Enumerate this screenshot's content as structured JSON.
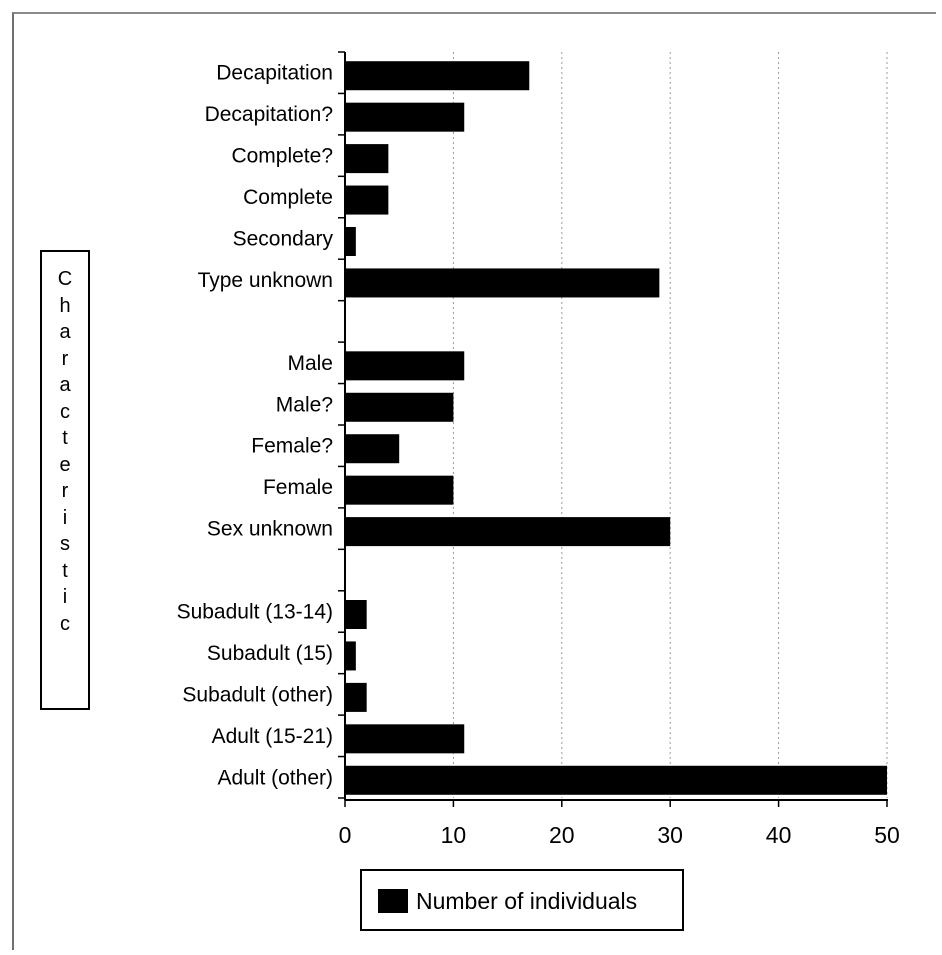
{
  "chart_data": {
    "type": "bar",
    "orientation": "horizontal",
    "ylabel": "Characteristic",
    "xlabel": "",
    "xlim": [
      0,
      50
    ],
    "xticks": [
      0,
      10,
      20,
      30,
      40,
      50
    ],
    "grid": "vertical dashed",
    "legend_position": "bottom",
    "groups": [
      {
        "categories": [
          "Decapitation",
          "Decapitation?",
          "Complete?",
          "Complete",
          "Secondary",
          "Type unknown"
        ],
        "values": [
          17,
          11,
          4,
          4,
          1,
          29
        ]
      },
      {
        "categories": [
          "Male",
          "Male?",
          "Female?",
          "Female",
          "Sex unknown"
        ],
        "values": [
          11,
          10,
          5,
          10,
          30
        ]
      },
      {
        "categories": [
          "Subadult (13-14)",
          "Subadult (15)",
          "Subadult (other)",
          "Adult (15-21)",
          "Adult (other)"
        ],
        "values": [
          2,
          1,
          2,
          11,
          50
        ]
      }
    ],
    "series": [
      {
        "name": "Number of individuals",
        "color": "#000000"
      }
    ]
  },
  "ylabel_display": "Characteristic",
  "legend": {
    "label": "Number of individuals"
  }
}
